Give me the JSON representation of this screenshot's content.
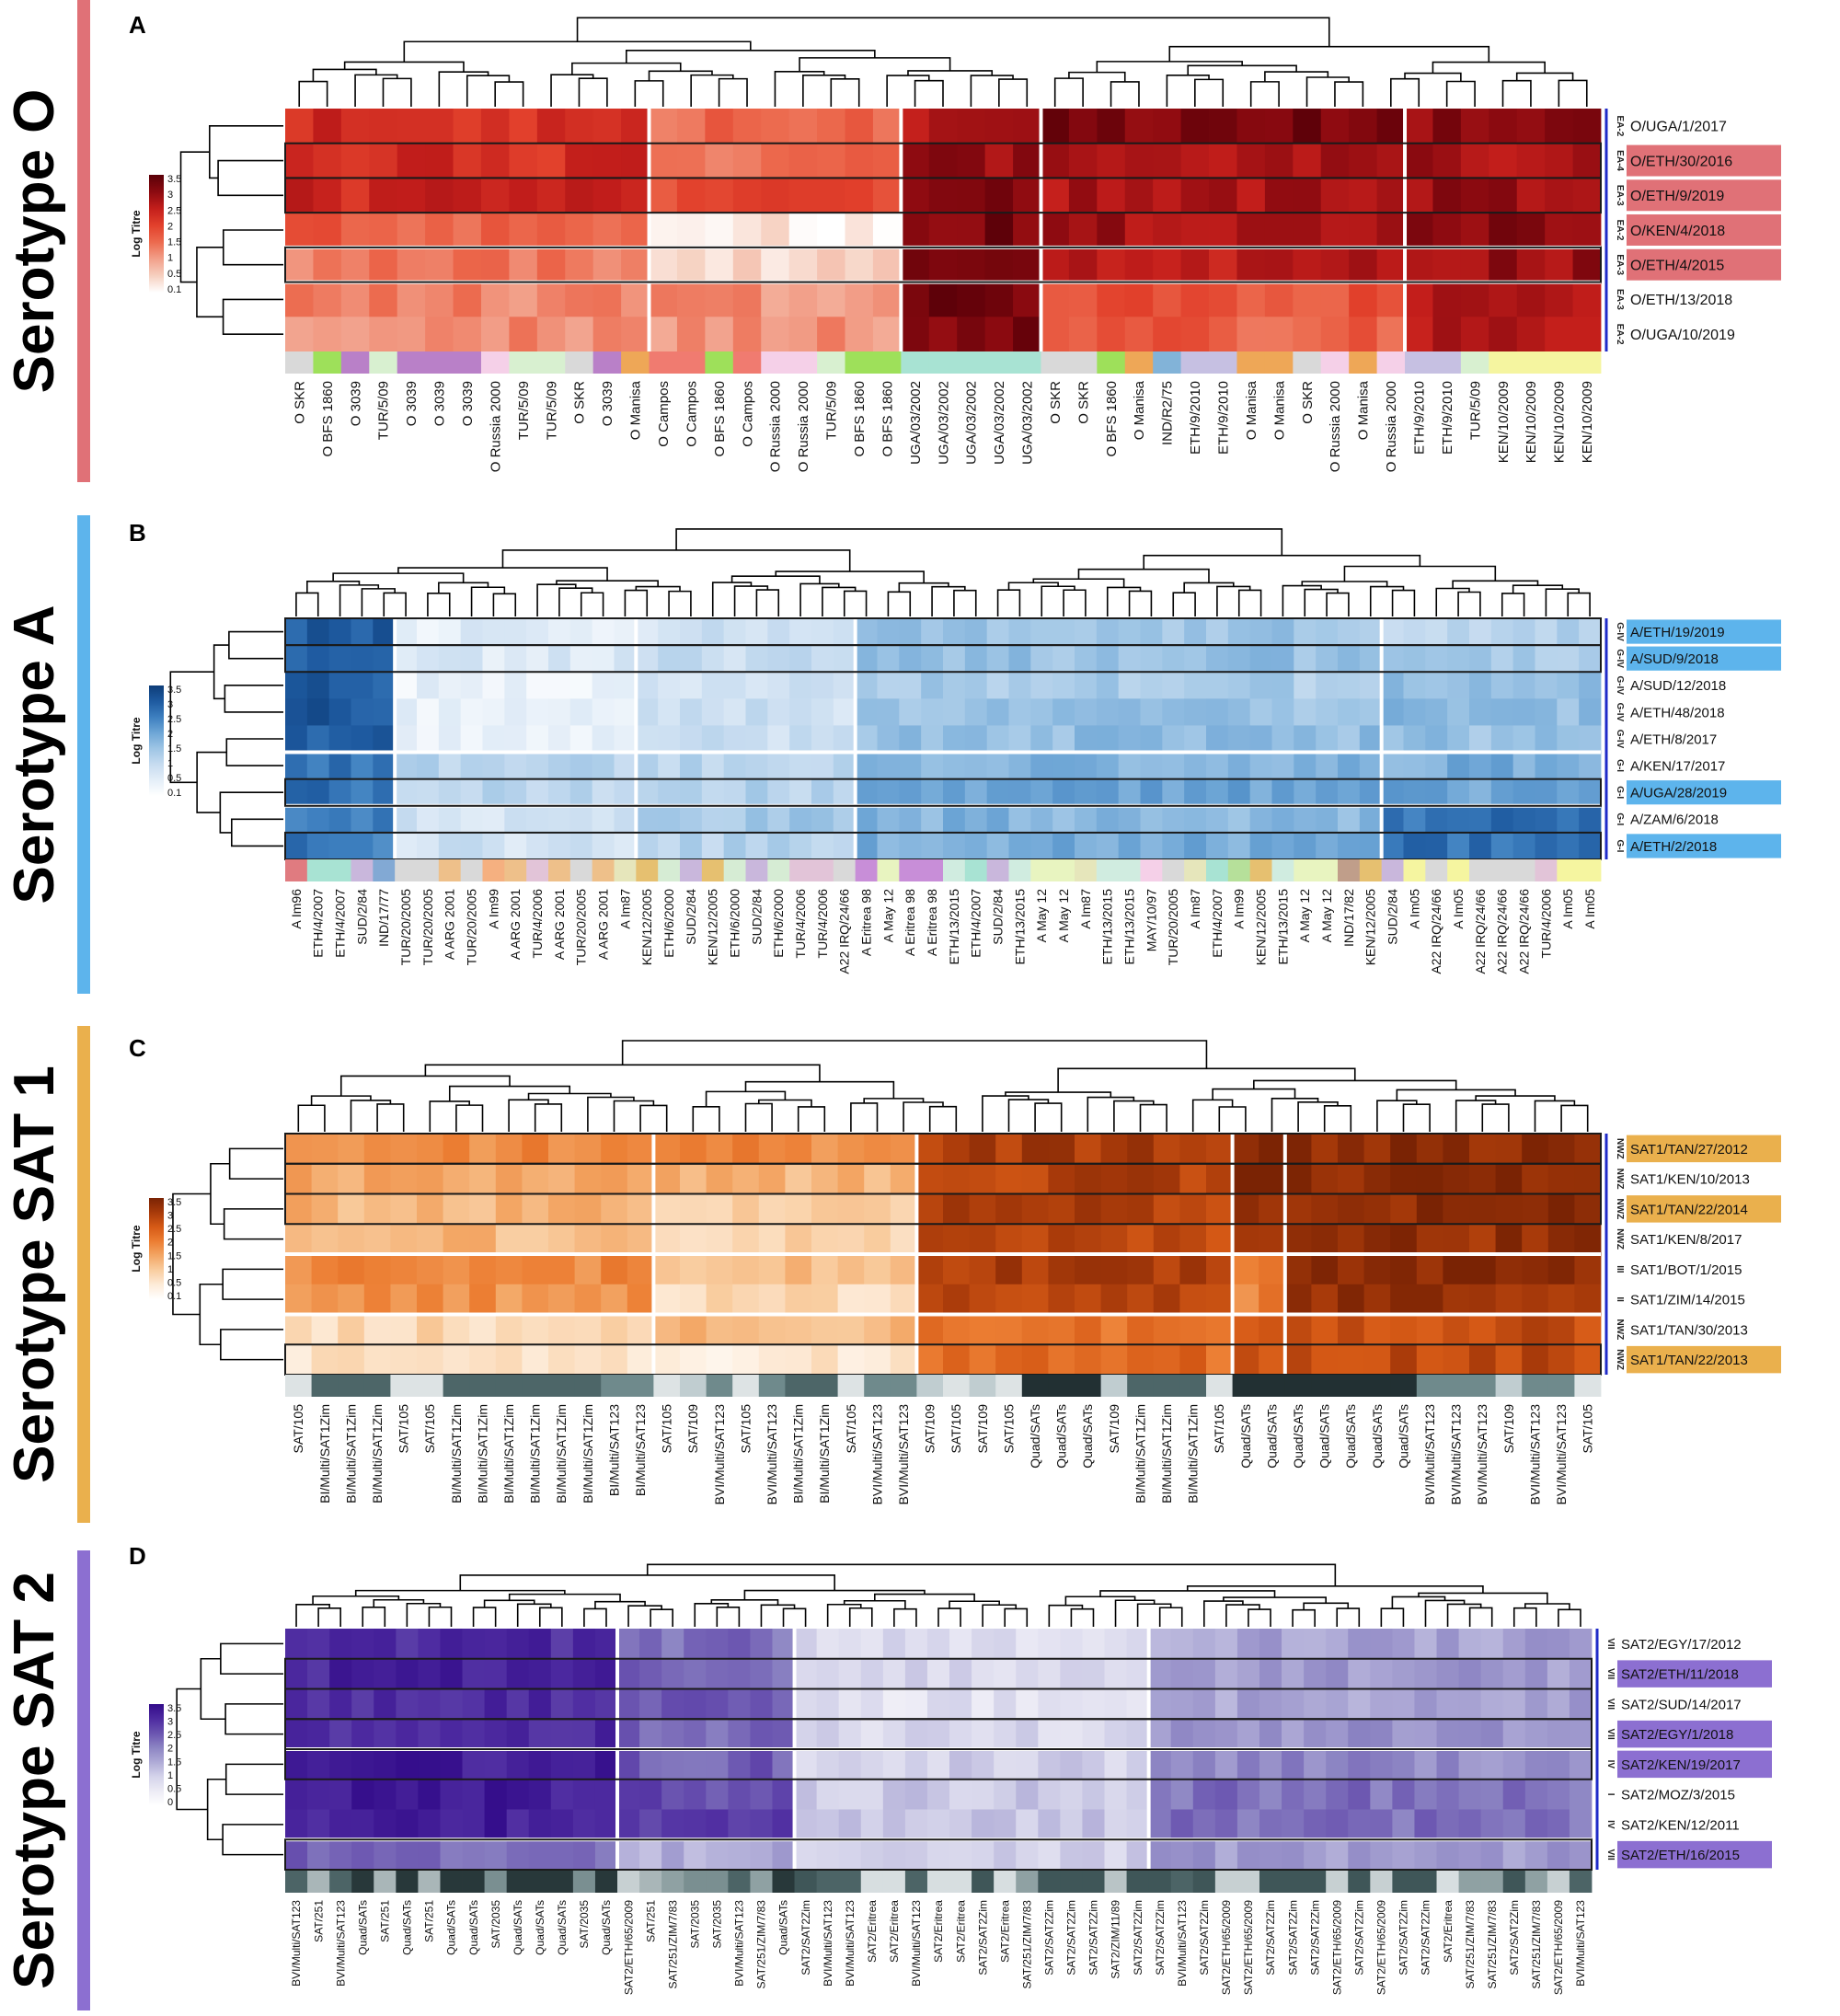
{
  "figure": {
    "colors": {
      "dendro": "#000000",
      "grid_line": "#ffffff",
      "row_box": "#1a1a1a",
      "group_bar": "#1f2bc8"
    }
  },
  "chart_data": [
    {
      "type": "heatmap",
      "panel": "A",
      "serotype": "Serotype O",
      "serotype_color": "#e07177",
      "colormap": [
        "#ffffff",
        "#f6d0c0",
        "#f2a08a",
        "#ec6a4e",
        "#e2412c",
        "#c31e1b",
        "#8b0a10",
        "#5a0008"
      ],
      "highlight_color": "#e07177",
      "legend": {
        "title": "Log Titre",
        "ticks": [
          "3.5",
          "3",
          "2.5",
          "2",
          "1.5",
          "1",
          "0.5",
          "0.1"
        ],
        "vmin": 0.1,
        "vmax": 3.5
      },
      "columns": [
        "O SKR",
        "O BFS 1860",
        "O 3039",
        "TUR/5/09",
        "O 3039",
        "O 3039",
        "O 3039",
        "O Russia 2000",
        "TUR/5/09",
        "TUR/5/09",
        "O SKR",
        "O 3039",
        "O Manisa",
        "O Campos",
        "O Campos",
        "O BFS 1860",
        "O Campos",
        "O Russia 2000",
        "O Russia 2000",
        "TUR/5/09",
        "O BFS 1860",
        "O BFS 1860",
        "UGA/03/2002",
        "UGA/03/2002",
        "UGA/03/2002",
        "UGA/03/2002",
        "UGA/03/2002",
        "O SKR",
        "O SKR",
        "O BFS 1860",
        "O Manisa",
        "IND/R2/75",
        "ETH/9/2010",
        "ETH/9/2010",
        "O Manisa",
        "O Manisa",
        "O SKR",
        "O Russia 2000",
        "O Manisa",
        "O Russia 2000",
        "ETH/9/2010",
        "ETH/9/2010",
        "TUR/5/09",
        "KEN/10/2009",
        "KEN/10/2009",
        "KEN/10/2009",
        "KEN/10/2009"
      ],
      "col_groups": [
        13,
        9,
        5,
        13,
        7
      ],
      "col_colors": [
        "#d9d9d9",
        "#9ee05a",
        "#b980c8",
        "#d8f0d0",
        "#b980c8",
        "#b980c8",
        "#b980c8",
        "#f5d0e8",
        "#d8f0d0",
        "#d8f0d0",
        "#d9d9d9",
        "#b980c8",
        "#eea757",
        "#f07b70",
        "#f07b70",
        "#9ee05a",
        "#f07b70",
        "#f5d0e8",
        "#f5d0e8",
        "#d8f0d0",
        "#9ee05a",
        "#9ee05a",
        "#a8e3d3",
        "#a8e3d3",
        "#a8e3d3",
        "#a8e3d3",
        "#a8e3d3",
        "#d9d9d9",
        "#d9d9d9",
        "#9ee05a",
        "#eea757",
        "#82b3d8",
        "#c6c0e2",
        "#c6c0e2",
        "#eea757",
        "#eea757",
        "#d9d9d9",
        "#f5d0e8",
        "#eea757",
        "#f5d0e8",
        "#c6c0e2",
        "#c6c0e2",
        "#d8f0d0",
        "#f5f5a0",
        "#f5f5a0",
        "#f5f5a0",
        "#f5f5a0"
      ],
      "rows": [
        "O/UGA/1/2017",
        "O/ETH/30/2016",
        "O/ETH/9/2019",
        "O/KEN/4/2018",
        "O/ETH/4/2015",
        "O/ETH/13/2018",
        "O/UGA/10/2019"
      ],
      "row_tags": [
        "EA-2",
        "EA-4",
        "EA-3",
        "EA-2",
        "EA-3",
        "EA-3",
        "EA-2"
      ],
      "row_highlight": [
        false,
        true,
        true,
        true,
        true,
        false,
        false
      ],
      "row_boxed": [
        false,
        true,
        true,
        false,
        true,
        false,
        false
      ],
      "row_groups": [
        4,
        1,
        2
      ],
      "group_levels": [
        [
          2.3,
          1.6,
          2.6,
          3.2,
          3.0
        ],
        [
          2.3,
          1.5,
          2.9,
          2.8,
          2.8
        ],
        [
          2.4,
          1.9,
          3.1,
          2.7,
          2.9
        ],
        [
          1.7,
          0.3,
          3.2,
          2.8,
          3.0
        ],
        [
          1.4,
          0.5,
          3.4,
          2.6,
          2.9
        ],
        [
          1.3,
          1.2,
          3.3,
          1.8,
          2.7
        ],
        [
          1.3,
          1.2,
          3.2,
          1.7,
          2.6
        ]
      ]
    },
    {
      "type": "heatmap",
      "panel": "B",
      "serotype": "Serotype A",
      "serotype_color": "#5db4ec",
      "colormap": [
        "#ffffff",
        "#e4eef8",
        "#c7dcf0",
        "#9ec5e5",
        "#6ea6d6",
        "#3d7fbf",
        "#1e5aa0",
        "#0d3d78"
      ],
      "highlight_color": "#5db4ec",
      "legend": {
        "title": "Log Titre",
        "ticks": [
          "3.5",
          "3",
          "2.5",
          "2",
          "1.5",
          "1",
          "0.5",
          "0.1"
        ],
        "vmin": 0.1,
        "vmax": 3.5
      },
      "columns": [
        "A Im96",
        "ETH/4/2007",
        "ETH/4/2007",
        "SUD/2/84",
        "IND/17/77",
        "TUR/20/2005",
        "TUR/20/2005",
        "A ARG 2001",
        "TUR/20/2005",
        "A Im99",
        "A ARG 2001",
        "TUR/4/2006",
        "A ARG 2001",
        "TUR/20/2005",
        "A ARG 2001",
        "A Im87",
        "KEN/12/2005",
        "ETH/6/2000",
        "SUD/2/84",
        "KEN/12/2005",
        "ETH/6/2000",
        "SUD/2/84",
        "ETH/6/2000",
        "TUR/4/2006",
        "TUR/4/2006",
        "A22 IRQ/24/66",
        "A Eritrea 98",
        "A May 12",
        "A Eritrea 98",
        "A Eritrea 98",
        "ETH/13/2015",
        "ETH/4/2007",
        "SUD/2/84",
        "ETH/13/2015",
        "A May 12",
        "A May 12",
        "A Im87",
        "ETH/13/2015",
        "ETH/13/2015",
        "MAY/10/97",
        "TUR/20/2005",
        "A Im87",
        "ETH/4/2007",
        "A Im99",
        "KEN/12/2005",
        "ETH/13/2015",
        "A May 12",
        "A May 12",
        "IND/17/82",
        "KEN/12/2005",
        "SUD/2/84",
        "A Im05",
        "A22 IRQ/24/66",
        "A Im05",
        "A22 IRQ/24/66",
        "A22 IRQ/24/66",
        "A22 IRQ/24/66",
        "TUR/4/2006",
        "A Im05",
        "A Im05"
      ],
      "col_groups": [
        5,
        11,
        10,
        24,
        10
      ],
      "col_colors": [
        "#e07b80",
        "#a8e3d3",
        "#a8e3d3",
        "#c9b7dc",
        "#82a9d4",
        "#d9d9d9",
        "#d9d9d9",
        "#eec08a",
        "#d9d9d9",
        "#f5b080",
        "#eec08a",
        "#e2c4d8",
        "#eec08a",
        "#d9d9d9",
        "#eec08a",
        "#e6e6bb",
        "#e6c070",
        "#d6ecd4",
        "#c9b7dc",
        "#e6c070",
        "#d6ecd4",
        "#c9b7dc",
        "#d6ecd4",
        "#e2c4d8",
        "#e2c4d8",
        "#d9d9d9",
        "#c88ed8",
        "#e8f4c0",
        "#c88ed8",
        "#c88ed8",
        "#d0ece0",
        "#a8e3d3",
        "#c9b7dc",
        "#d0ece0",
        "#e8f4c0",
        "#e8f4c0",
        "#e6e6bb",
        "#d0ece0",
        "#d0ece0",
        "#f5d0e8",
        "#d9d9d9",
        "#e6e6bb",
        "#a8e3d3",
        "#b6e09a",
        "#e6c070",
        "#d0ece0",
        "#e8f4c0",
        "#e8f4c0",
        "#c09e8a",
        "#e6c070",
        "#c9b7dc",
        "#f5f5a0",
        "#d9d9d9",
        "#f5f5a0",
        "#d9d9d9",
        "#d9d9d9",
        "#d9d9d9",
        "#e2c4d8",
        "#f5f5a0",
        "#f5f5a0"
      ],
      "rows": [
        "A/ETH/19/2019",
        "A/SUD/9/2018",
        "A/SUD/12/2018",
        "A/ETH/48/2018",
        "A/ETH/8/2017",
        "A/KEN/17/2017",
        "A/UGA/28/2019",
        "A/ZAM/6/2018",
        "A/ETH/2/2018"
      ],
      "row_tags": [
        "G-IV",
        "G-IV",
        "G-IV",
        "G-IV",
        "G-IV",
        "G-I",
        "G-I",
        "G-I",
        "G-I"
      ],
      "row_highlight": [
        true,
        true,
        false,
        false,
        false,
        false,
        true,
        false,
        true
      ],
      "row_boxed": [
        true,
        true,
        false,
        false,
        false,
        false,
        true,
        false,
        true
      ],
      "row_groups": [
        5,
        2,
        2
      ],
      "group_levels": [
        [
          3.0,
          0.6,
          0.9,
          1.5,
          1.3
        ],
        [
          3.0,
          0.7,
          1.0,
          1.6,
          1.4
        ],
        [
          3.0,
          0.5,
          0.9,
          1.4,
          1.6
        ],
        [
          3.1,
          0.5,
          1.0,
          1.6,
          1.7
        ],
        [
          3.0,
          0.5,
          1.0,
          1.7,
          1.6
        ],
        [
          2.6,
          1.3,
          1.3,
          1.9,
          1.9
        ],
        [
          2.7,
          1.2,
          1.3,
          2.0,
          2.0
        ],
        [
          2.5,
          0.9,
          1.5,
          1.8,
          2.7
        ],
        [
          2.6,
          0.9,
          1.3,
          1.9,
          2.7
        ]
      ]
    },
    {
      "type": "heatmap",
      "panel": "C",
      "serotype": "Serotype SAT 1",
      "serotype_color": "#eab04d",
      "colormap": [
        "#ffffff",
        "#fdebd8",
        "#f9cda0",
        "#f3a766",
        "#ec7e33",
        "#d65a16",
        "#a83a0a",
        "#7a2304"
      ],
      "highlight_color": "#eab04d",
      "legend": {
        "title": "Log Titre",
        "ticks": [
          "3.5",
          "3",
          "2.5",
          "2",
          "1.5",
          "1",
          "0.5",
          "0.1"
        ],
        "vmin": 0.1,
        "vmax": 3.5
      },
      "columns": [
        "SAT/105",
        "BI/Multi/SAT1Zim",
        "BI/Multi/SAT1Zim",
        "BI/Multi/SAT1Zim",
        "SAT/105",
        "SAT/105",
        "BI/Multi/SAT1Zim",
        "BI/Multi/SAT1Zim",
        "BI/Multi/SAT1Zim",
        "BI/Multi/SAT1Zim",
        "BI/Multi/SAT1Zim",
        "BI/Multi/SAT1Zim",
        "BI/Multi/SAT123",
        "BI/Multi/SAT123",
        "SAT/105",
        "SAT/109",
        "BVI/Multi/SAT123",
        "SAT/105",
        "BVI/Multi/SAT123",
        "BI/Multi/SAT1Zim",
        "BI/Multi/SAT1Zim",
        "SAT/105",
        "BVI/Multi/SAT123",
        "BVI/Multi/SAT123",
        "SAT/109",
        "SAT/105",
        "SAT/109",
        "SAT/105",
        "Quad/SATs",
        "Quad/SATs",
        "Quad/SATs",
        "SAT/109",
        "BI/Multi/SAT1Zim",
        "BI/Multi/SAT1Zim",
        "BI/Multi/SAT1Zim",
        "SAT/105",
        "Quad/SATs",
        "Quad/SATs",
        "Quad/SATs",
        "Quad/SATs",
        "Quad/SATs",
        "Quad/SATs",
        "Quad/SATs",
        "BVI/Multi/SAT123",
        "BVI/Multi/SAT123",
        "BVI/Multi/SAT123",
        "SAT/109",
        "BVI/Multi/SAT123",
        "BVI/Multi/SAT123",
        "SAT/105"
      ],
      "col_groups": [
        14,
        10,
        12,
        2,
        12
      ],
      "col_colors": [
        "#dde3e4",
        "#4d6668",
        "#4d6668",
        "#4d6668",
        "#dde3e4",
        "#dde3e4",
        "#4d6668",
        "#4d6668",
        "#4d6668",
        "#4d6668",
        "#4d6668",
        "#4d6668",
        "#6f8a8c",
        "#6f8a8c",
        "#dde3e4",
        "#c0cdd0",
        "#6f8a8c",
        "#dde3e4",
        "#6f8a8c",
        "#4d6668",
        "#4d6668",
        "#dde3e4",
        "#6f8a8c",
        "#6f8a8c",
        "#c0cdd0",
        "#dde3e4",
        "#c0cdd0",
        "#dde3e4",
        "#223033",
        "#223033",
        "#223033",
        "#c0cdd0",
        "#4d6668",
        "#4d6668",
        "#4d6668",
        "#dde3e4",
        "#223033",
        "#223033",
        "#223033",
        "#223033",
        "#223033",
        "#223033",
        "#223033",
        "#6f8a8c",
        "#6f8a8c",
        "#6f8a8c",
        "#c0cdd0",
        "#6f8a8c",
        "#6f8a8c",
        "#dde3e4"
      ],
      "rows": [
        "SAT1/TAN/27/2012",
        "SAT1/KEN/10/2013",
        "SAT1/TAN/22/2014",
        "SAT1/KEN/8/2017",
        "SAT1/BOT/1/2015",
        "SAT1/ZIM/14/2015",
        "SAT1/TAN/30/2013",
        "SAT1/TAN/22/2013"
      ],
      "row_tags": [
        "NWZ",
        "NWZ",
        "NWZ",
        "NWZ",
        "III",
        "II",
        "NWZ",
        "NWZ"
      ],
      "row_highlight": [
        true,
        false,
        true,
        false,
        false,
        false,
        false,
        true
      ],
      "row_boxed": [
        true,
        true,
        true,
        false,
        false,
        false,
        false,
        true
      ],
      "row_groups": [
        4,
        2,
        2
      ],
      "group_levels": [
        [
          1.9,
          1.9,
          3.0,
          3.3,
          3.3
        ],
        [
          1.6,
          1.4,
          2.9,
          3.3,
          3.3
        ],
        [
          1.4,
          1.1,
          2.9,
          3.2,
          3.3
        ],
        [
          1.3,
          1.0,
          2.8,
          3.1,
          3.2
        ],
        [
          1.9,
          1.2,
          3.0,
          2.2,
          3.4
        ],
        [
          1.8,
          0.9,
          2.9,
          2.0,
          3.2
        ],
        [
          0.9,
          1.3,
          2.2,
          2.4,
          2.7
        ],
        [
          0.7,
          0.6,
          2.3,
          2.7,
          2.8
        ]
      ]
    },
    {
      "type": "heatmap",
      "panel": "D",
      "serotype": "Serotype SAT 2",
      "serotype_color": "#8c6fd1",
      "colormap": [
        "#ffffff",
        "#ecebf5",
        "#d4d3ea",
        "#aeaad6",
        "#8c84c3",
        "#6a54b0",
        "#4d2aa0",
        "#330c8a"
      ],
      "highlight_color": "#8c6fd1",
      "legend": {
        "title": "Log Titre",
        "ticks": [
          "3.5",
          "3",
          "2.5",
          "2",
          "1.5",
          "1",
          "0.5",
          "0"
        ],
        "vmin": 0,
        "vmax": 3.5
      },
      "columns": [
        "BVI/Multi/SAT123",
        "SAT/251",
        "BVI/Multi/SAT123",
        "Quad/SATs",
        "SAT/251",
        "Quad/SATs",
        "SAT/251",
        "Quad/SATs",
        "Quad/SATs",
        "SAT/2035",
        "Quad/SATs",
        "Quad/SATs",
        "Quad/SATs",
        "SAT/2035",
        "Quad/SATs",
        "SAT2/ETH/65/2009",
        "SAT/251",
        "SAT/251/ZIM/7/83",
        "SAT/2035",
        "SAT/2035",
        "BVI/Multi/SAT123",
        "SAT/251/ZIM/7/83",
        "Quad/SATs",
        "SAT2/SAT2Zim",
        "BVI/Multi/SAT123",
        "BVI/Multi/SAT123",
        "SAT2/Eritrea",
        "SAT2/Eritrea",
        "BVI/Multi/SAT123",
        "SAT2/Eritrea",
        "SAT2/Eritrea",
        "SAT2/SAT2Zim",
        "SAT2/Eritrea",
        "SAT/251/ZIM/7/83",
        "SAT2/SAT2Zim",
        "SAT2/SAT2Zim",
        "SAT2/SAT2Zim",
        "SAT2/ZIM/11/89",
        "SAT2/SAT2Zim",
        "SAT2/SAT2Zim",
        "BVI/Multi/SAT123",
        "SAT2/SAT2Zim",
        "SAT2/ETH/65/2009",
        "SAT2/ETH/65/2009",
        "SAT2/SAT2Zim",
        "SAT2/SAT2Zim",
        "SAT2/SAT2Zim",
        "SAT2/ETH/65/2009",
        "SAT2/SAT2Zim",
        "SAT2/ETH/65/2009",
        "SAT2/SAT2Zim",
        "SAT2/SAT2Zim",
        "SAT2/Eritrea",
        "SAT/251/ZIM/7/83",
        "SAT/251/ZIM/7/83",
        "SAT2/SAT2Zim",
        "SAT/251/ZIM/7/83",
        "SAT2/ETH/65/2009",
        "BVI/Multi/SAT123"
      ],
      "col_groups": [
        15,
        8,
        16,
        20
      ],
      "col_colors": [
        "#4c6466",
        "#a9b6b8",
        "#4c6466",
        "#28383a",
        "#a9b6b8",
        "#28383a",
        "#a9b6b8",
        "#28383a",
        "#28383a",
        "#7a8f91",
        "#28383a",
        "#28383a",
        "#28383a",
        "#7a8f91",
        "#28383a",
        "#c7d0d2",
        "#a9b6b8",
        "#8fa1a3",
        "#7a8f91",
        "#7a8f91",
        "#4c6466",
        "#8fa1a3",
        "#28383a",
        "#3f5658",
        "#4c6466",
        "#4c6466",
        "#d7dee0",
        "#d7dee0",
        "#4c6466",
        "#d7dee0",
        "#d7dee0",
        "#3f5658",
        "#d7dee0",
        "#8fa1a3",
        "#3f5658",
        "#3f5658",
        "#3f5658",
        "#b9c4c6",
        "#3f5658",
        "#3f5658",
        "#4c6466",
        "#3f5658",
        "#c7d0d2",
        "#c7d0d2",
        "#3f5658",
        "#3f5658",
        "#3f5658",
        "#c7d0d2",
        "#3f5658",
        "#c7d0d2",
        "#3f5658",
        "#3f5658",
        "#d7dee0",
        "#8fa1a3",
        "#8fa1a3",
        "#3f5658",
        "#8fa1a3",
        "#c7d0d2",
        "#4c6466"
      ],
      "rows": [
        "SAT2/EGY/17/2012",
        "SAT2/ETH/11/2018",
        "SAT2/SUD/14/2017",
        "SAT2/EGY/1/2018",
        "SAT2/KEN/19/2017",
        "SAT2/MOZ/3/2015",
        "SAT2/KEN/12/2011",
        "SAT2/ETH/16/2015"
      ],
      "row_tags": [
        "VII",
        "VII",
        "VII",
        "VII",
        "IV",
        "I",
        "IV",
        "VII"
      ],
      "row_highlight": [
        false,
        true,
        false,
        true,
        true,
        false,
        false,
        true
      ],
      "row_boxed": [
        false,
        true,
        true,
        true,
        true,
        false,
        false,
        true
      ],
      "row_groups": [
        4,
        3,
        1
      ],
      "group_levels": [
        [
          3.0,
          2.2,
          0.8,
          1.6
        ],
        [
          3.1,
          2.3,
          0.9,
          1.7
        ],
        [
          3.0,
          2.4,
          0.7,
          1.6
        ],
        [
          3.0,
          2.3,
          0.9,
          1.8
        ],
        [
          3.2,
          2.4,
          1.0,
          1.9
        ],
        [
          3.2,
          2.6,
          1.1,
          2.2
        ],
        [
          3.2,
          2.7,
          1.2,
          2.2
        ],
        [
          2.3,
          1.5,
          1.0,
          1.7
        ]
      ]
    }
  ]
}
